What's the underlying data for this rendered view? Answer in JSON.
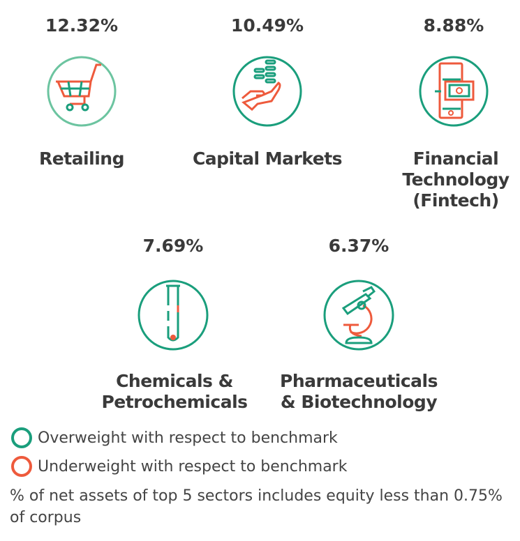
{
  "colors": {
    "overweight": "#1a9e7c",
    "underweight": "#ee5a3c",
    "light_green": "#6cc4a0"
  },
  "sectors": [
    {
      "percent": "12.32%",
      "label": "Retailing",
      "icon": "shopping-cart-icon",
      "weight": "overweight"
    },
    {
      "percent": "10.49%",
      "label": "Capital Markets",
      "icon": "hand-coins-icon",
      "weight": "overweight"
    },
    {
      "percent": "8.88%",
      "label": "Financial Technology (Fintech)",
      "icon": "phone-money-icon",
      "weight": "overweight"
    },
    {
      "percent": "7.69%",
      "label": "Chemicals & Petrochemicals",
      "icon": "test-tube-icon",
      "weight": "overweight"
    },
    {
      "percent": "6.37%",
      "label": "Pharmaceuticals & Biotechnology",
      "icon": "microscope-icon",
      "weight": "overweight"
    }
  ],
  "legend": {
    "overweight": "Overweight with respect to benchmark",
    "underweight": "Underweight with respect to benchmark"
  },
  "note": "% of net assets of top 5 sectors includes equity less than 0.75% of corpus"
}
